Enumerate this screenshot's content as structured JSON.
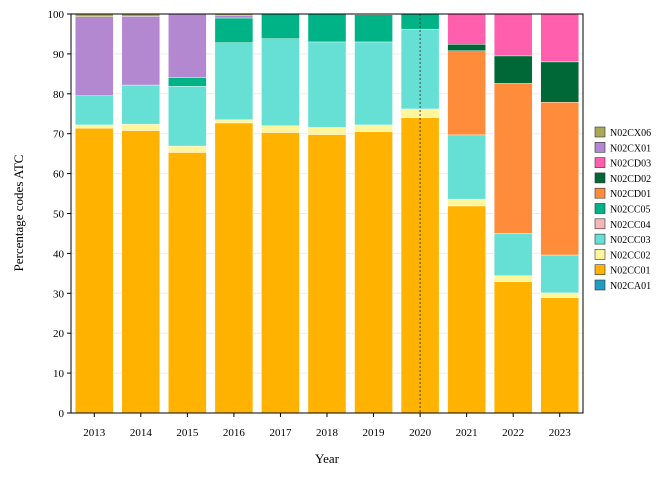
{
  "chart_data": {
    "type": "bar",
    "stacked": true,
    "xlabel": "Year",
    "ylabel": "Percentage codes ATC",
    "ylim": [
      0,
      100
    ],
    "yticks": [
      0,
      10,
      20,
      30,
      40,
      50,
      60,
      70,
      80,
      90,
      100
    ],
    "categories": [
      "2013",
      "2014",
      "2015",
      "2016",
      "2017",
      "2018",
      "2019",
      "2020",
      "2021",
      "2022",
      "2023"
    ],
    "reference_line": {
      "x": "2020",
      "style": "dotted"
    },
    "legend_position": "right",
    "series": [
      {
        "name": "N02CA01",
        "color": "#1f9ec4",
        "values": [
          0.1,
          0.1,
          0.1,
          0.1,
          0.1,
          0.0,
          0.0,
          0.0,
          0.0,
          0.0,
          0.0
        ]
      },
      {
        "name": "N02CC01",
        "color": "#ffb300",
        "values": [
          71.3,
          70.7,
          65.2,
          72.6,
          70.2,
          69.8,
          70.5,
          74.0,
          51.9,
          32.9,
          28.9
        ]
      },
      {
        "name": "N02CC02",
        "color": "#fff59d",
        "values": [
          0.8,
          1.6,
          1.6,
          0.8,
          1.7,
          1.8,
          1.7,
          2.2,
          1.7,
          1.5,
          1.2
        ]
      },
      {
        "name": "N02CC03",
        "color": "#66e0d4",
        "values": [
          7.3,
          9.8,
          15.0,
          19.3,
          21.8,
          21.4,
          20.8,
          20.0,
          16.1,
          10.6,
          9.5
        ]
      },
      {
        "name": "N02CC04",
        "color": "#f4b6b6",
        "values": [
          0.0,
          0.0,
          0.0,
          0.0,
          0.0,
          0.0,
          0.0,
          0.0,
          0.0,
          0.0,
          0.0
        ]
      },
      {
        "name": "N02CC05",
        "color": "#00b386",
        "values": [
          0.0,
          0.0,
          2.2,
          6.2,
          6.2,
          7.0,
          6.8,
          3.8,
          0.0,
          0.0,
          0.0
        ]
      },
      {
        "name": "N02CD01",
        "color": "#ff8c3b",
        "values": [
          0.0,
          0.0,
          0.0,
          0.0,
          0.0,
          0.0,
          0.0,
          0.0,
          21.1,
          37.6,
          38.3
        ]
      },
      {
        "name": "N02CD02",
        "color": "#006837",
        "values": [
          0.0,
          0.0,
          0.0,
          0.0,
          0.0,
          0.0,
          0.0,
          0.0,
          1.6,
          6.9,
          10.1
        ]
      },
      {
        "name": "N02CD03",
        "color": "#ff5fac",
        "values": [
          0.0,
          0.0,
          0.0,
          0.0,
          0.0,
          0.0,
          0.0,
          0.0,
          7.6,
          10.5,
          12.0
        ]
      },
      {
        "name": "N02CX01",
        "color": "#b388d0",
        "values": [
          19.8,
          17.2,
          15.9,
          0.7,
          0.0,
          0.0,
          0.0,
          0.0,
          0.0,
          0.0,
          0.0
        ]
      },
      {
        "name": "N02CX06",
        "color": "#a8a857",
        "values": [
          0.7,
          0.6,
          0.0,
          0.3,
          0.0,
          0.0,
          0.2,
          0.0,
          0.0,
          0.0,
          0.0
        ]
      }
    ]
  }
}
